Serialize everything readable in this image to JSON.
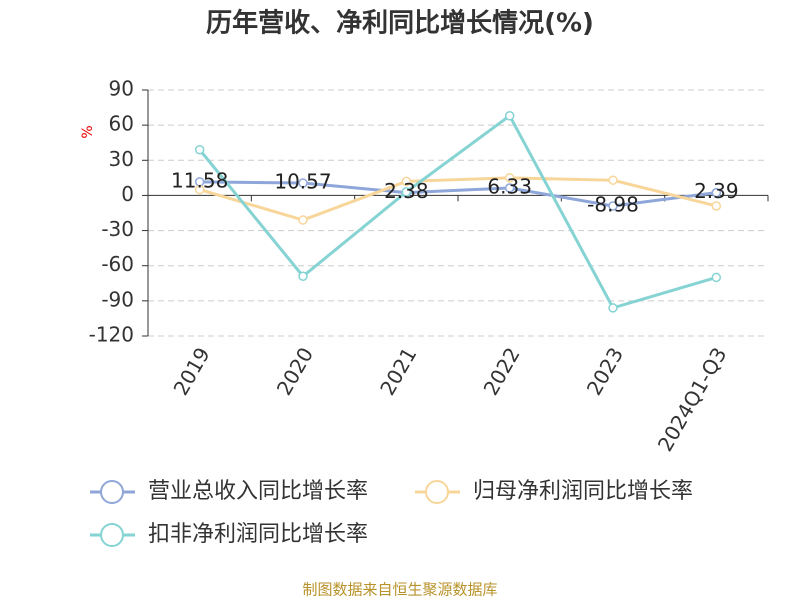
{
  "chart_data": {
    "type": "line",
    "title": "历年营收、净利同比增长情况(%)",
    "y_label": "%",
    "categories": [
      "2019",
      "2020",
      "2021",
      "2022",
      "2023",
      "2024Q1-Q3"
    ],
    "series": [
      {
        "name": "营业总收入同比增长率",
        "color": "#8ea6d9",
        "values": [
          11.58,
          10.57,
          2.38,
          6.33,
          -8.98,
          2.39
        ],
        "labels": true
      },
      {
        "name": "归母净利润同比增长率",
        "color": "#f8d69a",
        "values": [
          5,
          -21,
          12,
          15,
          13,
          -9
        ]
      },
      {
        "name": "扣非净利润同比增长率",
        "color": "#85d3d3",
        "values": [
          39,
          -69,
          3,
          68,
          -96,
          -70
        ]
      }
    ],
    "ylim": [
      -120,
      90
    ],
    "yticks": [
      90,
      60,
      30,
      0,
      -30,
      -60,
      -90,
      -120
    ],
    "grid": true,
    "source": "制图数据来自恒生聚源数据库"
  }
}
